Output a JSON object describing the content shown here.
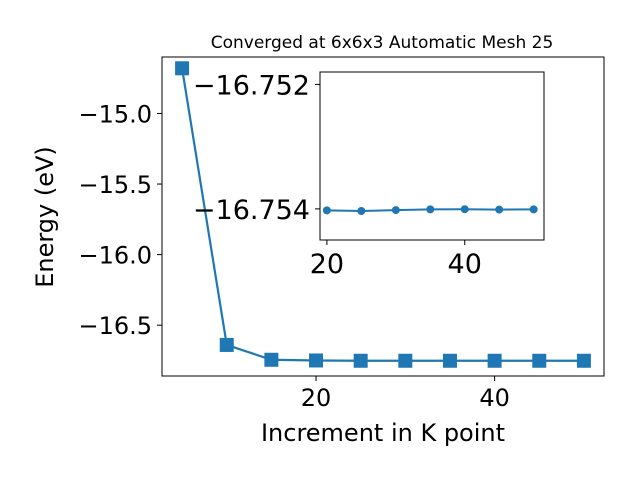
{
  "chart_data": [
    {
      "type": "line",
      "title": "Converged at 6x6x3 Automatic Mesh 25",
      "xlabel": "Increment in K point",
      "ylabel": "Energy (eV)",
      "x": [
        5,
        10,
        15,
        20,
        25,
        30,
        35,
        40,
        45,
        50
      ],
      "series": [
        {
          "values": [
            -14.68,
            -16.64,
            -16.745,
            -16.75,
            -16.752,
            -16.752,
            -16.752,
            -16.752,
            -16.752,
            -16.752
          ],
          "marker": "square",
          "color": "#1f77b4"
        }
      ],
      "xlim": [
        2.75,
        52.25
      ],
      "ylim": [
        -16.86,
        -14.6
      ],
      "xticks": [
        20,
        40
      ],
      "xtick_labels": [
        "20",
        "40"
      ],
      "yticks": [
        -15.0,
        -15.5,
        -16.0,
        -16.5
      ],
      "ytick_labels": [
        "−15.0",
        "−15.5",
        "−16.0",
        "−16.5"
      ],
      "grid": false,
      "legend": "none"
    },
    {
      "type": "line",
      "title": "",
      "xlabel": "",
      "ylabel": "",
      "x": [
        20,
        25,
        30,
        35,
        40,
        45,
        50
      ],
      "series": [
        {
          "values": [
            -16.754,
            -16.754,
            -16.754,
            -16.754,
            -16.754,
            -16.754,
            -16.754
          ],
          "marker": "circle",
          "color": "#1f77b4"
        }
      ],
      "xlim": [
        19,
        51.5
      ],
      "ylim": [
        -16.7545,
        -16.7518
      ],
      "xticks": [
        20,
        40
      ],
      "xtick_labels": [
        "20",
        "40"
      ],
      "yticks": [
        -16.754,
        -16.752
      ],
      "ytick_labels": [
        "−16.754",
        "−16.752"
      ],
      "y_offset_visual": [
        0.0,
        0.03,
        -0.015,
        -0.05,
        -0.06,
        -0.04,
        -0.05
      ],
      "grid": false,
      "legend": "none"
    }
  ]
}
